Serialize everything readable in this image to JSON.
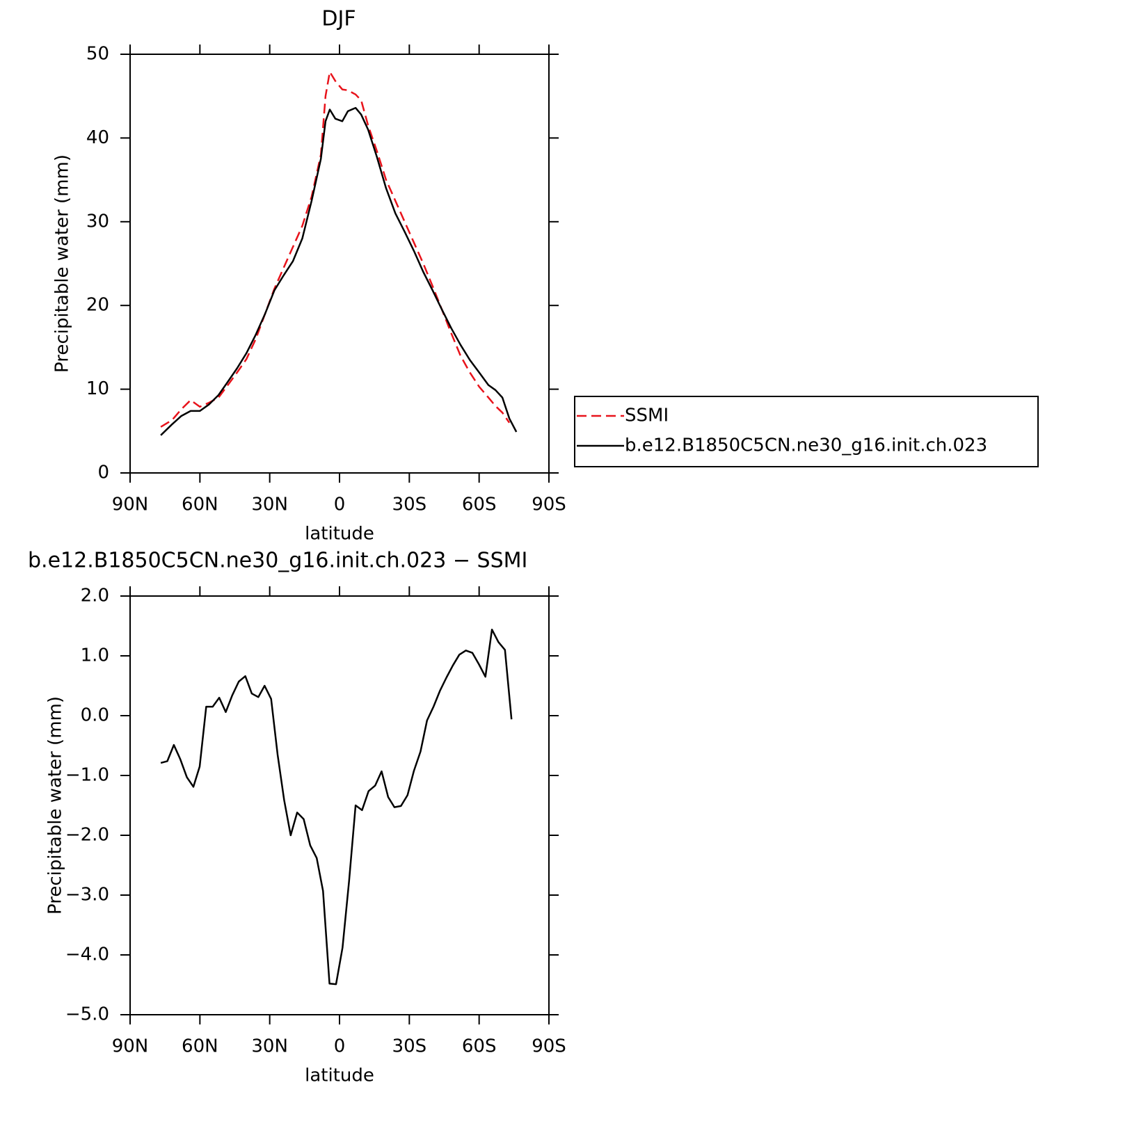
{
  "chart_data": [
    {
      "type": "line",
      "title": "DJF",
      "xlabel": "latitude",
      "ylabel": "Precipitable water (mm)",
      "x": [
        76.8,
        72,
        68,
        64,
        60,
        56,
        52,
        48,
        44,
        40,
        36,
        32,
        28,
        24,
        20,
        16,
        12,
        8,
        6,
        4.2,
        1.8,
        -1.2,
        -3.6,
        -6.9,
        -9.3,
        -12.3,
        -16,
        -20,
        -24,
        -28,
        -32,
        -36,
        -40,
        -44,
        -48,
        -52,
        -56,
        -60,
        -64,
        -67,
        -70,
        -73,
        -76
      ],
      "series": [
        {
          "name": "SSMI",
          "color": "#e8131b",
          "style": "dashed",
          "values": [
            5.5,
            6.3,
            7.6,
            8.7,
            7.9,
            8.4,
            9.0,
            10.5,
            12.0,
            13.6,
            16.0,
            19.0,
            22.0,
            24.5,
            27.0,
            29.5,
            33.0,
            38.0,
            45.0,
            47.9,
            46.8,
            45.8,
            45.7,
            45.2,
            44.5,
            41.5,
            38.5,
            35.0,
            32.5,
            30.0,
            27.5,
            25.0,
            22.3,
            19.5,
            16.7,
            14.0,
            12.0,
            10.3,
            9.0,
            8.0,
            7.2,
            6.0,
            null
          ]
        },
        {
          "name": "b.e12.B1850C5CN.ne30_g16.init.ch.023",
          "color": "#000000",
          "style": "solid",
          "values": [
            4.5,
            5.8,
            6.8,
            7.4,
            7.4,
            8.2,
            9.3,
            10.9,
            12.5,
            14.3,
            16.5,
            19.0,
            21.8,
            23.6,
            25.3,
            28.0,
            32.5,
            37.5,
            42.0,
            43.4,
            42.3,
            42.0,
            43.2,
            43.6,
            42.8,
            41.0,
            37.8,
            34.0,
            31.0,
            28.8,
            26.5,
            24.0,
            21.8,
            19.5,
            17.3,
            15.3,
            13.5,
            12.0,
            10.5,
            9.9,
            9.0,
            6.5,
            4.9
          ]
        }
      ],
      "xlim": [
        90,
        -90
      ],
      "xticks": [
        {
          "value": 90,
          "label": "90N"
        },
        {
          "value": 60,
          "label": "60N"
        },
        {
          "value": 30,
          "label": "30N"
        },
        0,
        {
          "value": -30,
          "label": "30S"
        },
        {
          "value": -60,
          "label": "60S"
        },
        {
          "value": -90,
          "label": "90S"
        }
      ],
      "ylim": [
        0,
        50
      ],
      "yticks": [
        0,
        10,
        20,
        30,
        40,
        50
      ],
      "legend": "right"
    },
    {
      "type": "line",
      "title": "b.e12.B1850C5CN.ne30_g16.init.ch.023 − SSMI",
      "xlabel": "latitude",
      "ylabel": "Precipitable water (mm)",
      "x": [
        76.8,
        74.0,
        71.2,
        68.4,
        65.6,
        62.8,
        60.1,
        57.3,
        54.5,
        51.7,
        48.9,
        46.1,
        43.3,
        40.5,
        37.7,
        34.9,
        32.2,
        29.4,
        26.6,
        23.8,
        21.0,
        18.2,
        15.4,
        12.6,
        9.8,
        7.1,
        4.3,
        1.5,
        -1.3,
        -4.1,
        -6.9,
        -9.7,
        -12.5,
        -15.3,
        -18.1,
        -20.9,
        -23.6,
        -26.4,
        -29.2,
        -32.0,
        -34.8,
        -37.6,
        -40.4,
        -43.2,
        -46.0,
        -48.7,
        -51.5,
        -54.3,
        -57.1,
        -59.9,
        -62.7,
        -65.5,
        -68.3,
        -71.1,
        -73.9
      ],
      "values": [
        -0.79,
        -0.76,
        -0.49,
        -0.73,
        -1.03,
        -1.19,
        -0.85,
        0.15,
        0.15,
        0.3,
        0.06,
        0.34,
        0.57,
        0.66,
        0.37,
        0.31,
        0.5,
        0.28,
        -0.65,
        -1.41,
        -2.0,
        -1.62,
        -1.73,
        -2.17,
        -2.38,
        -2.93,
        -4.48,
        -4.49,
        -3.88,
        -2.77,
        -1.5,
        -1.58,
        -1.26,
        -1.17,
        -0.93,
        -1.36,
        -1.53,
        -1.51,
        -1.33,
        -0.92,
        -0.6,
        -0.08,
        0.15,
        0.42,
        0.64,
        0.84,
        1.02,
        1.09,
        1.05,
        0.86,
        0.65,
        1.44,
        1.23,
        1.1,
        -0.06
      ],
      "color": "#000000",
      "xlim": [
        90,
        -90
      ],
      "xticks": [
        {
          "value": 90,
          "label": "90N"
        },
        {
          "value": 60,
          "label": "60N"
        },
        {
          "value": 30,
          "label": "30N"
        },
        0,
        {
          "value": -30,
          "label": "30S"
        },
        {
          "value": -60,
          "label": "60S"
        },
        {
          "value": -90,
          "label": "90S"
        }
      ],
      "ylim": [
        -5,
        2
      ],
      "yticks": [
        {
          "value": -5,
          "label": "−5.0"
        },
        {
          "value": -4,
          "label": "−4.0"
        },
        {
          "value": -3,
          "label": "−3.0"
        },
        {
          "value": -2,
          "label": "−2.0"
        },
        {
          "value": -1,
          "label": "−1.0"
        },
        {
          "value": 0,
          "label": "0.0"
        },
        {
          "value": 1,
          "label": "1.0"
        },
        {
          "value": 2,
          "label": "2.0"
        }
      ]
    }
  ]
}
